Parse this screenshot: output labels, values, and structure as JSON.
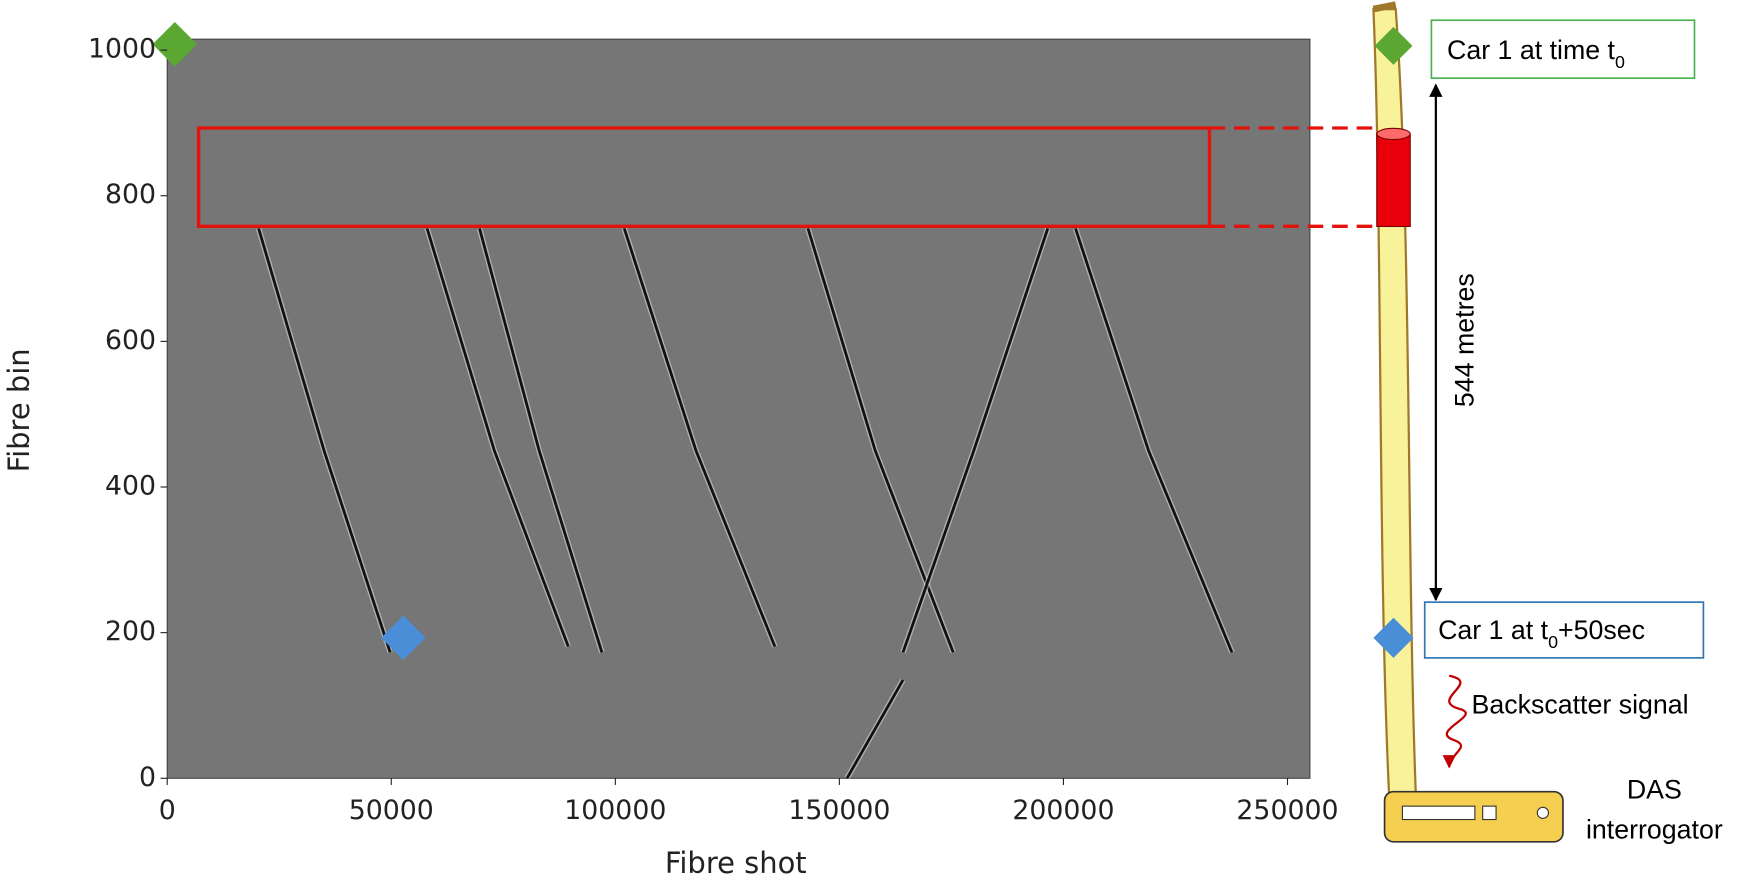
{
  "chart_data": {
    "type": "trace",
    "xlabel": "Fibre shot",
    "ylabel": "Fibre bin",
    "xlim": [
      0,
      255000
    ],
    "ylim": [
      0,
      1015
    ],
    "xticks": [
      0,
      50000,
      100000,
      150000,
      200000,
      250000
    ],
    "yticks": [
      0,
      200,
      400,
      600,
      800,
      1000
    ],
    "background": "#767676",
    "trace_color": "#111111",
    "traces": [
      {
        "x": [
          20400,
          35000,
          49750
        ],
        "y": [
          755,
          450,
          173
        ]
      },
      {
        "x": [
          58000,
          73000,
          89500
        ],
        "y": [
          755,
          450,
          181
        ]
      },
      {
        "x": [
          69700,
          83000,
          97000
        ],
        "y": [
          755,
          450,
          173
        ]
      },
      {
        "x": [
          102000,
          118000,
          135600
        ],
        "y": [
          755,
          450,
          181
        ]
      },
      {
        "x": [
          143000,
          158000,
          175400
        ],
        "y": [
          755,
          450,
          173
        ]
      },
      {
        "x": [
          196500,
          180000,
          164200
        ],
        "y": [
          755,
          450,
          173
        ]
      },
      {
        "x": [
          202700,
          219000,
          237600
        ],
        "y": [
          755,
          450,
          173
        ]
      },
      {
        "x": [
          151700,
          164200
        ],
        "y": [
          0,
          135
        ]
      }
    ],
    "markers": [
      {
        "x": 1700,
        "y": 1008,
        "color": "#5aa832"
      },
      {
        "x": 52700,
        "y": 193,
        "color": "#4a8ed8"
      }
    ],
    "highlight": {
      "x": [
        7000,
        232600
      ],
      "y": [
        758,
        893
      ],
      "color": "#e3120b"
    }
  },
  "diagram": {
    "car_start": {
      "text": "Car 1 at time t",
      "sub": "0"
    },
    "car_end": {
      "text": "Car 1 at t",
      "sub": "0",
      "after": "+50sec"
    },
    "distance": "544 metres",
    "signal": "Backscatter signal",
    "device": [
      "DAS",
      "interrogator"
    ]
  }
}
